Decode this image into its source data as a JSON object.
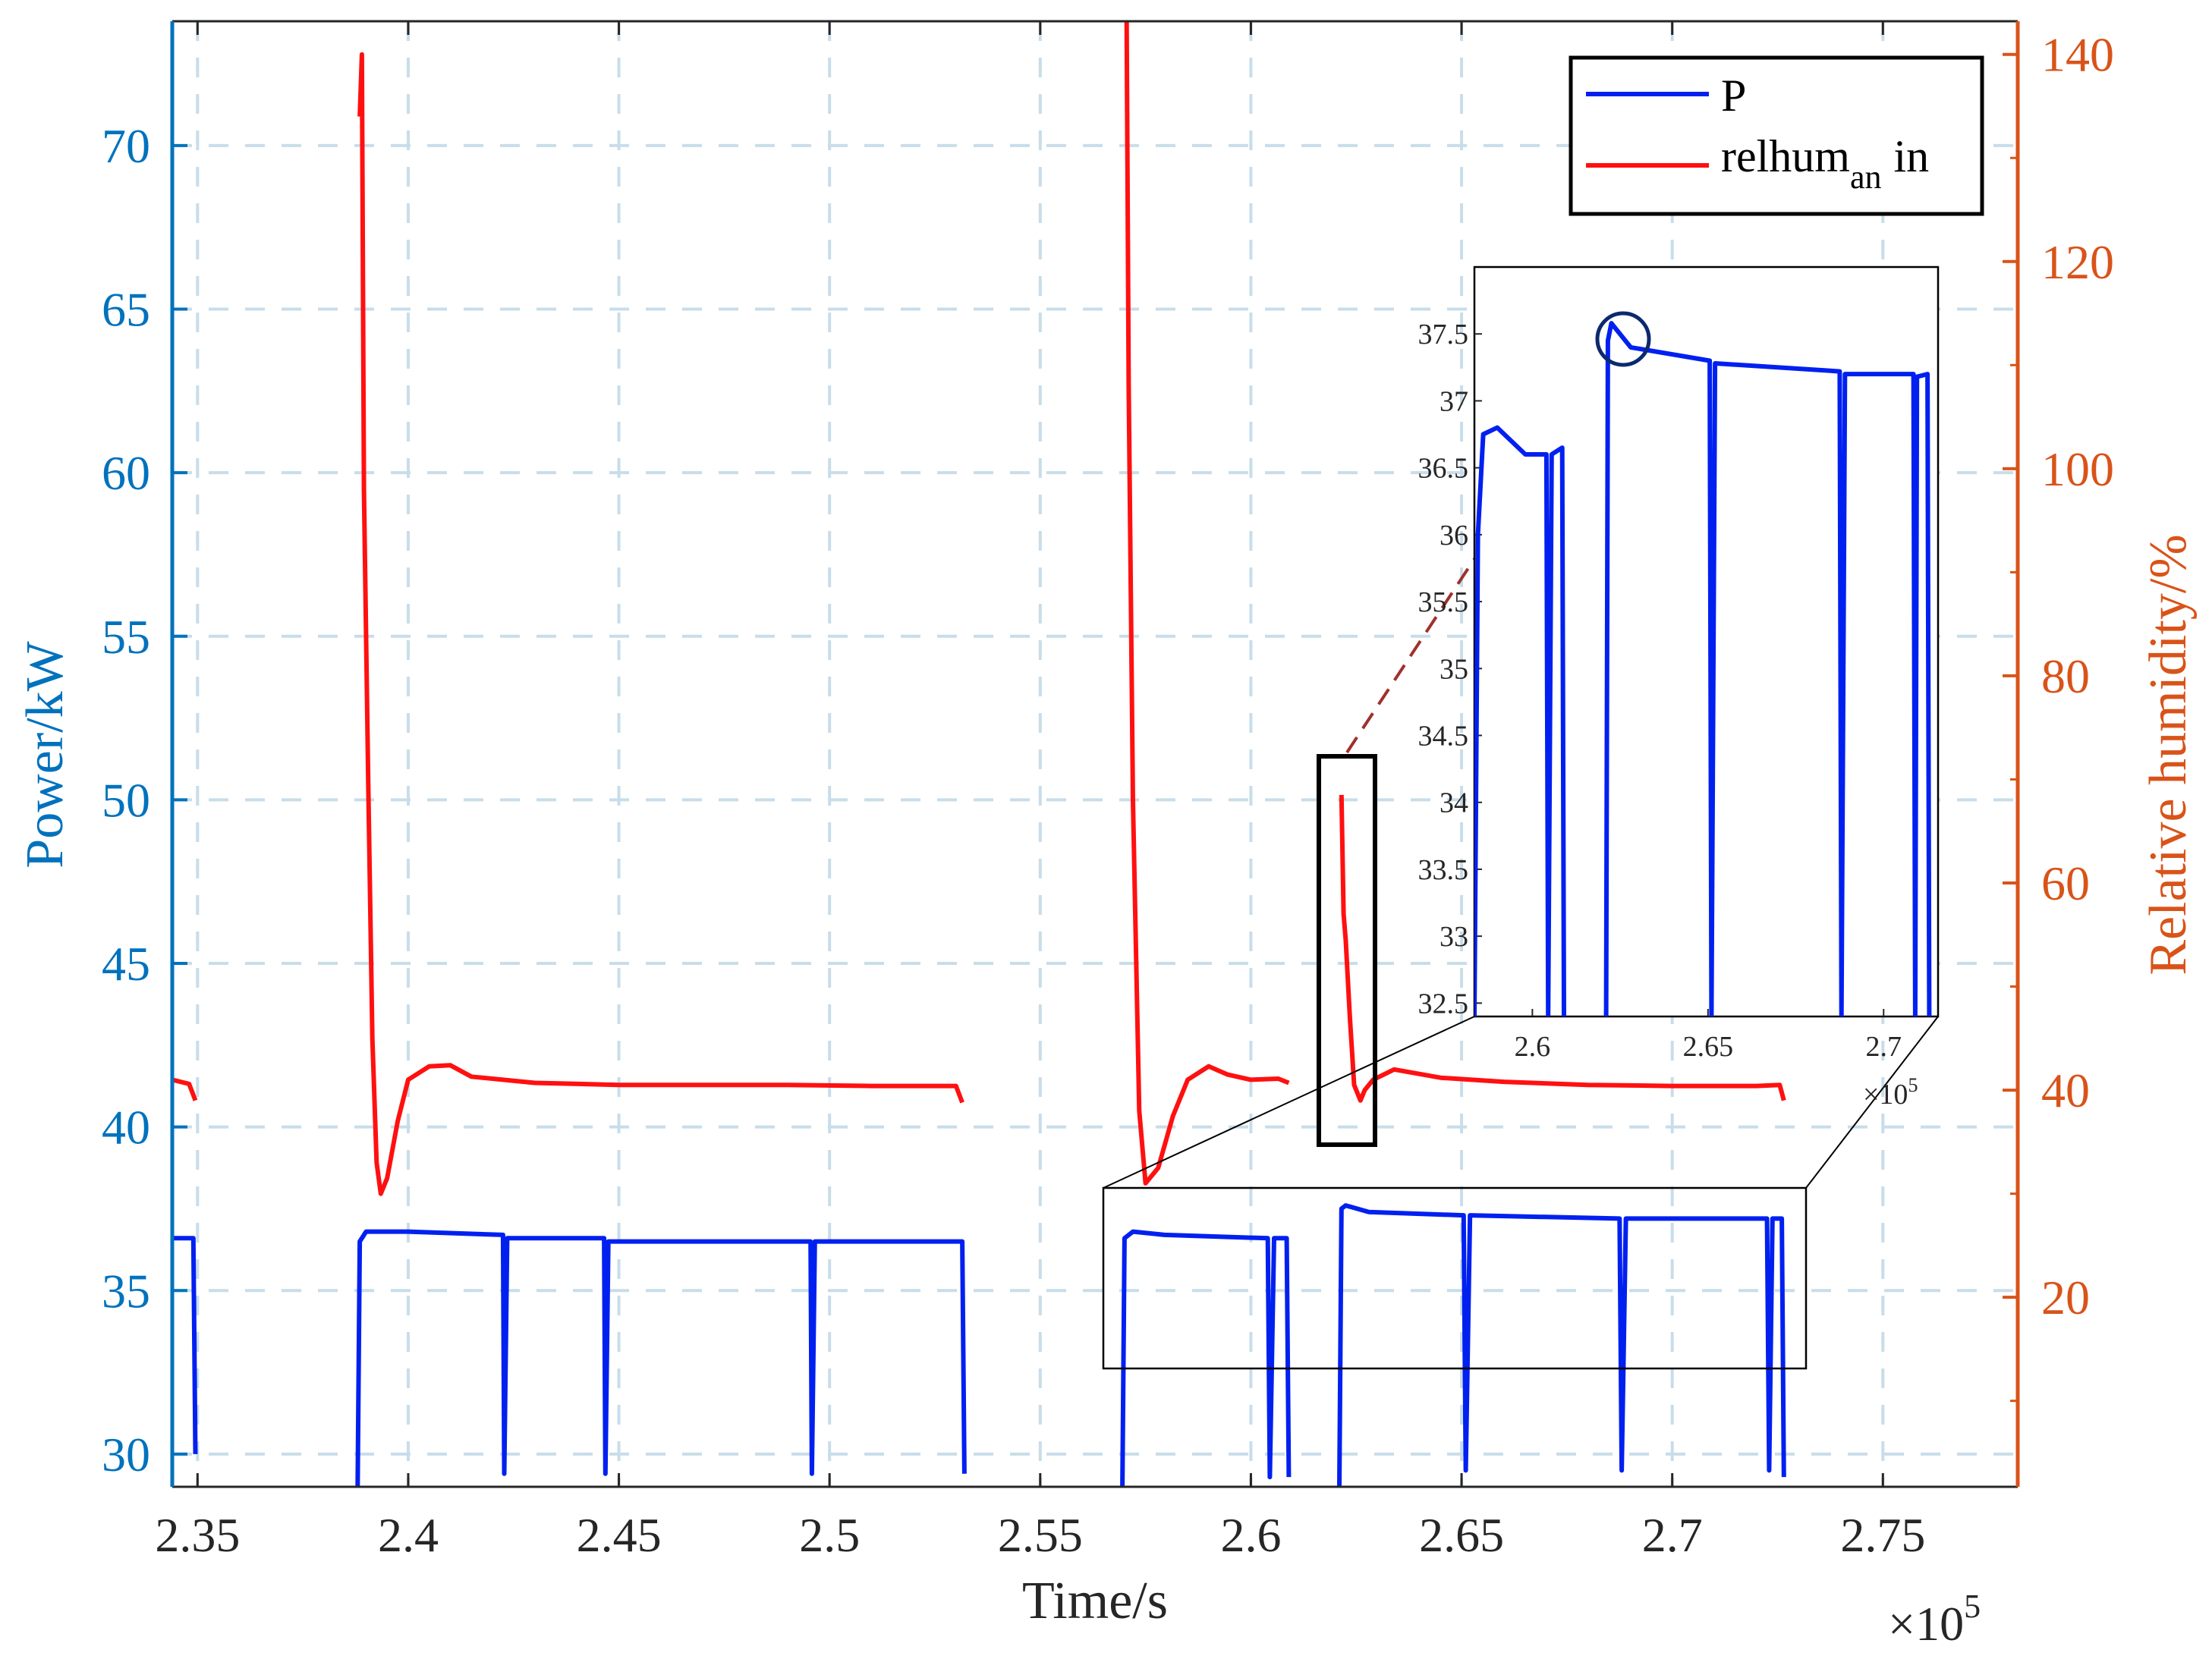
{
  "chart_data": {
    "type": "line",
    "xlabel": "Time/s",
    "ylabel_left": "Power/kW",
    "ylabel_right": "Relative humidity/%",
    "x_exponent_label": "×10",
    "x_exponent_power": "5",
    "x_ticks": [
      "2.35",
      "2.4",
      "2.45",
      "2.5",
      "2.55",
      "2.6",
      "2.65",
      "2.7",
      "2.75"
    ],
    "x_tick_values": [
      2.35,
      2.4,
      2.45,
      2.5,
      2.55,
      2.6,
      2.65,
      2.7,
      2.75
    ],
    "xlim": [
      2.344,
      2.782
    ],
    "y_left_ticks": [
      "30",
      "35",
      "40",
      "45",
      "50",
      "55",
      "60",
      "65",
      "70"
    ],
    "y_left_tick_values": [
      30,
      35,
      40,
      45,
      50,
      55,
      60,
      65,
      70
    ],
    "y_left_lim": [
      29.0,
      73.8
    ],
    "y_right_ticks": [
      "20",
      "40",
      "60",
      "80",
      "100",
      "120",
      "140"
    ],
    "y_right_tick_values": [
      20,
      40,
      60,
      80,
      100,
      120,
      140
    ],
    "y_right_lim": [
      1.7,
      143.2
    ],
    "grid": true,
    "legend_position": "top-right",
    "colors": {
      "P": "#0020F0",
      "relhum": "#FF1010",
      "left_axis": "#0072BD",
      "right_axis": "#D95319"
    },
    "series": [
      {
        "name": "P",
        "axis": "left",
        "color": "#0020F0",
        "segments": [
          [
            [
              2.344,
              36.6
            ],
            [
              2.349,
              36.6
            ],
            [
              2.3495,
              30.0
            ]
          ],
          [
            [
              2.388,
              29.0
            ],
            [
              2.3885,
              36.5
            ],
            [
              2.39,
              36.8
            ],
            [
              2.4,
              36.8
            ],
            [
              2.4225,
              36.7
            ],
            [
              2.4228,
              29.4
            ],
            [
              2.4235,
              36.6
            ],
            [
              2.4465,
              36.6
            ],
            [
              2.4468,
              29.4
            ],
            [
              2.4475,
              36.5
            ],
            [
              2.4955,
              36.5
            ],
            [
              2.4958,
              29.4
            ],
            [
              2.4965,
              36.5
            ],
            [
              2.5315,
              36.5
            ],
            [
              2.532,
              29.4
            ]
          ],
          [
            [
              2.5695,
              29.0
            ],
            [
              2.57,
              36.6
            ],
            [
              2.572,
              36.8
            ],
            [
              2.5795,
              36.7
            ],
            [
              2.604,
              36.6
            ],
            [
              2.6045,
              29.3
            ],
            [
              2.6055,
              36.6
            ],
            [
              2.6085,
              36.6
            ],
            [
              2.609,
              29.3
            ]
          ],
          [
            [
              2.621,
              29.0
            ],
            [
              2.6215,
              37.5
            ],
            [
              2.6225,
              37.6
            ],
            [
              2.628,
              37.4
            ],
            [
              2.6505,
              37.3
            ],
            [
              2.651,
              29.5
            ],
            [
              2.652,
              37.3
            ],
            [
              2.6875,
              37.2
            ],
            [
              2.688,
              29.5
            ],
            [
              2.689,
              37.2
            ],
            [
              2.7225,
              37.2
            ],
            [
              2.723,
              29.5
            ],
            [
              2.7238,
              37.2
            ],
            [
              2.726,
              37.2
            ],
            [
              2.7265,
              29.3
            ]
          ]
        ]
      },
      {
        "name": "relhum an in",
        "name_main": "relhum",
        "name_subscript": "an",
        "name_suffix": "in",
        "axis": "right",
        "color": "#FF1010",
        "segments": [
          [
            [
              2.344,
              41.0
            ],
            [
              2.348,
              40.6
            ],
            [
              2.3495,
              39.0
            ]
          ],
          [
            [
              2.3885,
              134.0
            ],
            [
              2.389,
              140.0
            ],
            [
              2.3895,
              98.0
            ],
            [
              2.3905,
              70.0
            ],
            [
              2.3915,
              45.0
            ],
            [
              2.3925,
              33.0
            ],
            [
              2.3935,
              30.0
            ],
            [
              2.395,
              31.5
            ],
            [
              2.3975,
              37.0
            ],
            [
              2.4,
              41.0
            ],
            [
              2.405,
              42.3
            ],
            [
              2.41,
              42.4
            ],
            [
              2.415,
              41.3
            ],
            [
              2.43,
              40.7
            ],
            [
              2.45,
              40.5
            ],
            [
              2.47,
              40.5
            ],
            [
              2.49,
              40.5
            ],
            [
              2.51,
              40.4
            ],
            [
              2.53,
              40.4
            ],
            [
              2.5315,
              38.8
            ]
          ],
          [
            [
              2.5705,
              144.5
            ],
            [
              2.571,
              108.0
            ],
            [
              2.572,
              68.0
            ],
            [
              2.5735,
              38.0
            ],
            [
              2.575,
              31.0
            ],
            [
              2.578,
              32.5
            ],
            [
              2.5815,
              37.5
            ],
            [
              2.585,
              41.0
            ],
            [
              2.59,
              42.3
            ],
            [
              2.5945,
              41.5
            ],
            [
              2.6,
              41.0
            ],
            [
              2.6065,
              41.1
            ],
            [
              2.609,
              40.7
            ]
          ],
          [
            [
              2.6215,
              68.5
            ],
            [
              2.622,
              57.0
            ],
            [
              2.6225,
              54.5
            ],
            [
              2.6235,
              47.0
            ],
            [
              2.6245,
              40.5
            ],
            [
              2.626,
              39.0
            ],
            [
              2.627,
              40.0
            ],
            [
              2.629,
              41.0
            ],
            [
              2.634,
              42.0
            ],
            [
              2.645,
              41.2
            ],
            [
              2.66,
              40.8
            ],
            [
              2.68,
              40.5
            ],
            [
              2.7,
              40.4
            ],
            [
              2.72,
              40.4
            ],
            [
              2.7255,
              40.5
            ],
            [
              2.7265,
              39.0
            ]
          ]
        ]
      }
    ],
    "inset": {
      "x_ticks": [
        "2.6",
        "2.65",
        "2.7"
      ],
      "x_tick_values": [
        2.6,
        2.65,
        2.7
      ],
      "xlim": [
        2.5835,
        2.7155
      ],
      "x_exponent_label": "×10",
      "x_exponent_power": "5",
      "y_ticks": [
        "32.5",
        "33",
        "33.5",
        "34",
        "34.5",
        "35",
        "35.5",
        "36",
        "36.5",
        "37",
        "37.5"
      ],
      "y_tick_values": [
        32.5,
        33,
        33.5,
        34,
        34.5,
        35,
        35.5,
        36,
        36.5,
        37,
        37.5
      ],
      "ylim": [
        32.4,
        38.0
      ],
      "segments": [
        [
          [
            2.5835,
            32.4
          ],
          [
            2.5845,
            36.0
          ],
          [
            2.586,
            36.75
          ],
          [
            2.59,
            36.8
          ],
          [
            2.598,
            36.6
          ],
          [
            2.604,
            36.6
          ],
          [
            2.6045,
            32.4
          ],
          [
            2.6055,
            36.6
          ],
          [
            2.6085,
            36.65
          ],
          [
            2.609,
            32.4
          ]
        ],
        [
          [
            2.621,
            32.4
          ],
          [
            2.6215,
            37.45
          ],
          [
            2.6225,
            37.58
          ],
          [
            2.628,
            37.4
          ],
          [
            2.6505,
            37.3
          ],
          [
            2.651,
            32.4
          ],
          [
            2.652,
            37.28
          ],
          [
            2.6875,
            37.22
          ],
          [
            2.688,
            32.4
          ],
          [
            2.689,
            37.2
          ],
          [
            2.7085,
            37.2
          ],
          [
            2.709,
            32.4
          ],
          [
            2.7095,
            37.18
          ],
          [
            2.7125,
            37.2
          ],
          [
            2.713,
            32.4
          ]
        ]
      ]
    }
  }
}
